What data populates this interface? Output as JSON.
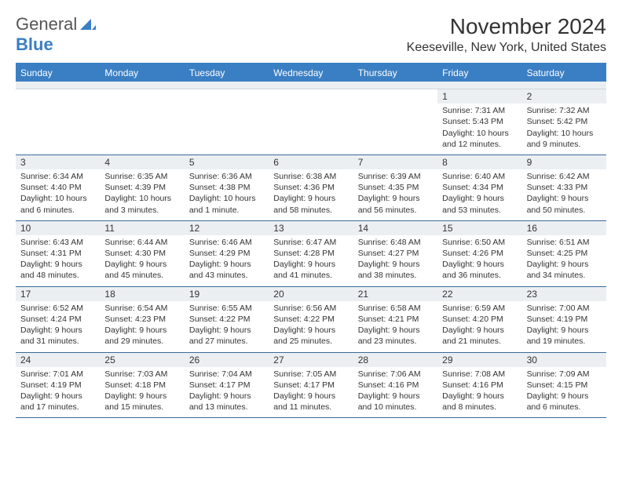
{
  "logo": {
    "line1": "General",
    "line2": "Blue"
  },
  "title": "November 2024",
  "location": "Keeseville, New York, United States",
  "weekdays": [
    "Sunday",
    "Monday",
    "Tuesday",
    "Wednesday",
    "Thursday",
    "Friday",
    "Saturday"
  ],
  "colors": {
    "header_bar": "#3a7fc4",
    "header_text": "#ffffff",
    "num_bar_bg": "#eceff2",
    "week_border": "#3a6a9a"
  },
  "weeks": [
    [
      {
        "num": "",
        "sunrise": "",
        "sunset": "",
        "daylight": ""
      },
      {
        "num": "",
        "sunrise": "",
        "sunset": "",
        "daylight": ""
      },
      {
        "num": "",
        "sunrise": "",
        "sunset": "",
        "daylight": ""
      },
      {
        "num": "",
        "sunrise": "",
        "sunset": "",
        "daylight": ""
      },
      {
        "num": "",
        "sunrise": "",
        "sunset": "",
        "daylight": ""
      },
      {
        "num": "1",
        "sunrise": "Sunrise: 7:31 AM",
        "sunset": "Sunset: 5:43 PM",
        "daylight": "Daylight: 10 hours and 12 minutes."
      },
      {
        "num": "2",
        "sunrise": "Sunrise: 7:32 AM",
        "sunset": "Sunset: 5:42 PM",
        "daylight": "Daylight: 10 hours and 9 minutes."
      }
    ],
    [
      {
        "num": "3",
        "sunrise": "Sunrise: 6:34 AM",
        "sunset": "Sunset: 4:40 PM",
        "daylight": "Daylight: 10 hours and 6 minutes."
      },
      {
        "num": "4",
        "sunrise": "Sunrise: 6:35 AM",
        "sunset": "Sunset: 4:39 PM",
        "daylight": "Daylight: 10 hours and 3 minutes."
      },
      {
        "num": "5",
        "sunrise": "Sunrise: 6:36 AM",
        "sunset": "Sunset: 4:38 PM",
        "daylight": "Daylight: 10 hours and 1 minute."
      },
      {
        "num": "6",
        "sunrise": "Sunrise: 6:38 AM",
        "sunset": "Sunset: 4:36 PM",
        "daylight": "Daylight: 9 hours and 58 minutes."
      },
      {
        "num": "7",
        "sunrise": "Sunrise: 6:39 AM",
        "sunset": "Sunset: 4:35 PM",
        "daylight": "Daylight: 9 hours and 56 minutes."
      },
      {
        "num": "8",
        "sunrise": "Sunrise: 6:40 AM",
        "sunset": "Sunset: 4:34 PM",
        "daylight": "Daylight: 9 hours and 53 minutes."
      },
      {
        "num": "9",
        "sunrise": "Sunrise: 6:42 AM",
        "sunset": "Sunset: 4:33 PM",
        "daylight": "Daylight: 9 hours and 50 minutes."
      }
    ],
    [
      {
        "num": "10",
        "sunrise": "Sunrise: 6:43 AM",
        "sunset": "Sunset: 4:31 PM",
        "daylight": "Daylight: 9 hours and 48 minutes."
      },
      {
        "num": "11",
        "sunrise": "Sunrise: 6:44 AM",
        "sunset": "Sunset: 4:30 PM",
        "daylight": "Daylight: 9 hours and 45 minutes."
      },
      {
        "num": "12",
        "sunrise": "Sunrise: 6:46 AM",
        "sunset": "Sunset: 4:29 PM",
        "daylight": "Daylight: 9 hours and 43 minutes."
      },
      {
        "num": "13",
        "sunrise": "Sunrise: 6:47 AM",
        "sunset": "Sunset: 4:28 PM",
        "daylight": "Daylight: 9 hours and 41 minutes."
      },
      {
        "num": "14",
        "sunrise": "Sunrise: 6:48 AM",
        "sunset": "Sunset: 4:27 PM",
        "daylight": "Daylight: 9 hours and 38 minutes."
      },
      {
        "num": "15",
        "sunrise": "Sunrise: 6:50 AM",
        "sunset": "Sunset: 4:26 PM",
        "daylight": "Daylight: 9 hours and 36 minutes."
      },
      {
        "num": "16",
        "sunrise": "Sunrise: 6:51 AM",
        "sunset": "Sunset: 4:25 PM",
        "daylight": "Daylight: 9 hours and 34 minutes."
      }
    ],
    [
      {
        "num": "17",
        "sunrise": "Sunrise: 6:52 AM",
        "sunset": "Sunset: 4:24 PM",
        "daylight": "Daylight: 9 hours and 31 minutes."
      },
      {
        "num": "18",
        "sunrise": "Sunrise: 6:54 AM",
        "sunset": "Sunset: 4:23 PM",
        "daylight": "Daylight: 9 hours and 29 minutes."
      },
      {
        "num": "19",
        "sunrise": "Sunrise: 6:55 AM",
        "sunset": "Sunset: 4:22 PM",
        "daylight": "Daylight: 9 hours and 27 minutes."
      },
      {
        "num": "20",
        "sunrise": "Sunrise: 6:56 AM",
        "sunset": "Sunset: 4:22 PM",
        "daylight": "Daylight: 9 hours and 25 minutes."
      },
      {
        "num": "21",
        "sunrise": "Sunrise: 6:58 AM",
        "sunset": "Sunset: 4:21 PM",
        "daylight": "Daylight: 9 hours and 23 minutes."
      },
      {
        "num": "22",
        "sunrise": "Sunrise: 6:59 AM",
        "sunset": "Sunset: 4:20 PM",
        "daylight": "Daylight: 9 hours and 21 minutes."
      },
      {
        "num": "23",
        "sunrise": "Sunrise: 7:00 AM",
        "sunset": "Sunset: 4:19 PM",
        "daylight": "Daylight: 9 hours and 19 minutes."
      }
    ],
    [
      {
        "num": "24",
        "sunrise": "Sunrise: 7:01 AM",
        "sunset": "Sunset: 4:19 PM",
        "daylight": "Daylight: 9 hours and 17 minutes."
      },
      {
        "num": "25",
        "sunrise": "Sunrise: 7:03 AM",
        "sunset": "Sunset: 4:18 PM",
        "daylight": "Daylight: 9 hours and 15 minutes."
      },
      {
        "num": "26",
        "sunrise": "Sunrise: 7:04 AM",
        "sunset": "Sunset: 4:17 PM",
        "daylight": "Daylight: 9 hours and 13 minutes."
      },
      {
        "num": "27",
        "sunrise": "Sunrise: 7:05 AM",
        "sunset": "Sunset: 4:17 PM",
        "daylight": "Daylight: 9 hours and 11 minutes."
      },
      {
        "num": "28",
        "sunrise": "Sunrise: 7:06 AM",
        "sunset": "Sunset: 4:16 PM",
        "daylight": "Daylight: 9 hours and 10 minutes."
      },
      {
        "num": "29",
        "sunrise": "Sunrise: 7:08 AM",
        "sunset": "Sunset: 4:16 PM",
        "daylight": "Daylight: 9 hours and 8 minutes."
      },
      {
        "num": "30",
        "sunrise": "Sunrise: 7:09 AM",
        "sunset": "Sunset: 4:15 PM",
        "daylight": "Daylight: 9 hours and 6 minutes."
      }
    ]
  ]
}
